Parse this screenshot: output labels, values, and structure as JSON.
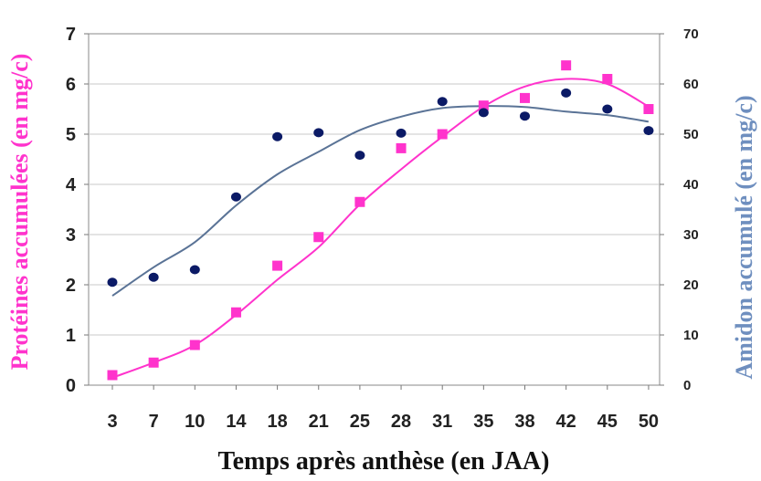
{
  "chart_data": {
    "type": "scatter",
    "xlabel": "Temps après anthèse (en JAA)",
    "ylabel_left": "Protéines accumulées (en mg/c)",
    "ylabel_right": "Amidon accumulé (en mg/c)",
    "categories": [
      "3",
      "7",
      "10",
      "14",
      "18",
      "21",
      "25",
      "28",
      "31",
      "35",
      "38",
      "42",
      "45",
      "50"
    ],
    "ylim_left": [
      0,
      7
    ],
    "yticks_left": [
      "0",
      "1",
      "2",
      "3",
      "4",
      "5",
      "6",
      "7"
    ],
    "ylim_right": [
      0,
      70
    ],
    "yticks_right": [
      "0",
      "10",
      "20",
      "30",
      "40",
      "50",
      "60",
      "70"
    ],
    "grid": true,
    "colors": {
      "proteins": "#ff33cc",
      "starch_points": "#0b1a66",
      "starch_curve": "#5a7396",
      "left_label": "#ff33cc",
      "right_label": "#6f8fbf"
    },
    "series": [
      {
        "axis": "left",
        "marker": "square",
        "points": [
          0.2,
          0.45,
          0.8,
          1.45,
          2.38,
          2.95,
          3.65,
          4.72,
          5.0,
          5.57,
          5.72,
          6.37,
          6.1,
          5.5
        ],
        "fit": [
          0.15,
          0.45,
          0.8,
          1.4,
          2.1,
          2.75,
          3.6,
          4.3,
          4.95,
          5.55,
          5.95,
          6.1,
          6.0,
          5.55
        ]
      },
      {
        "axis": "right",
        "marker": "circle",
        "points": [
          20.5,
          21.5,
          23.0,
          37.5,
          49.5,
          50.3,
          45.8,
          50.2,
          56.5,
          54.3,
          53.6,
          58.2,
          55.0,
          50.7
        ],
        "fit": [
          17.8,
          23.5,
          28.5,
          35.8,
          42.0,
          46.5,
          50.8,
          53.5,
          55.2,
          55.6,
          55.4,
          54.5,
          53.8,
          52.5
        ]
      }
    ]
  }
}
